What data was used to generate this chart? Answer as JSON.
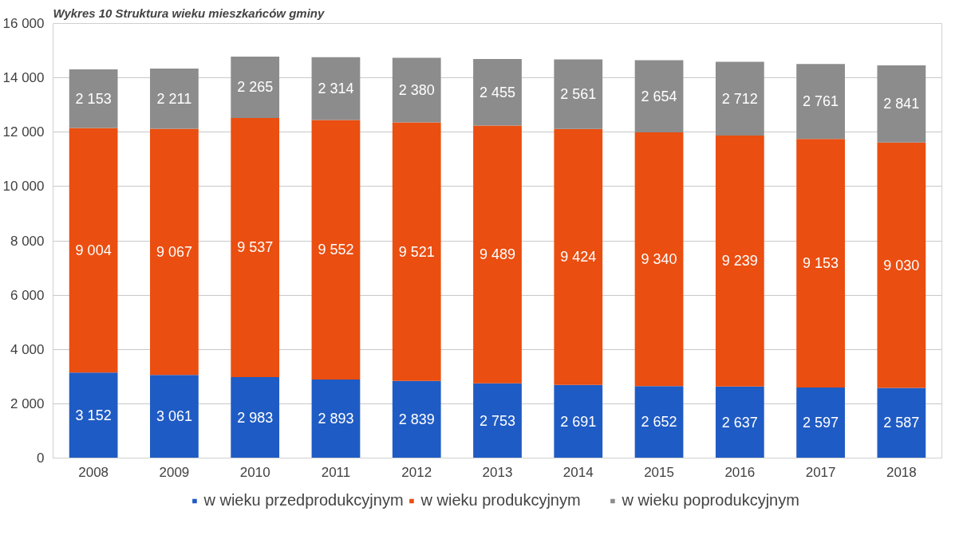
{
  "chart_data": {
    "type": "bar",
    "stacked": true,
    "title": "Wykres 10 Struktura wieku mieszkańców gminy",
    "categories": [
      "2008",
      "2009",
      "2010",
      "2011",
      "2012",
      "2013",
      "2014",
      "2015",
      "2016",
      "2017",
      "2018"
    ],
    "series": [
      {
        "name": "w wieku przedprodukcyjnym",
        "color": "#1f5bc4",
        "values": [
          3152,
          3061,
          2983,
          2893,
          2839,
          2753,
          2691,
          2652,
          2637,
          2597,
          2587
        ],
        "value_labels": [
          "3 152",
          "3 061",
          "2 983",
          "2 893",
          "2 839",
          "2 753",
          "2 691",
          "2 652",
          "2 637",
          "2 597",
          "2 587"
        ]
      },
      {
        "name": "w wieku produkcyjnym",
        "color": "#ea4e10",
        "values": [
          9004,
          9067,
          9537,
          9552,
          9521,
          9489,
          9424,
          9340,
          9239,
          9153,
          9030
        ],
        "value_labels": [
          "9 004",
          "9 067",
          "9 537",
          "9 552",
          "9 521",
          "9 489",
          "9 424",
          "9 340",
          "9 239",
          "9 153",
          "9 030"
        ]
      },
      {
        "name": "w wieku poprodukcyjnym",
        "color": "#8c8c8c",
        "values": [
          2153,
          2211,
          2265,
          2314,
          2380,
          2455,
          2561,
          2654,
          2712,
          2761,
          2841
        ],
        "value_labels": [
          "2 153",
          "2 211",
          "2 265",
          "2 314",
          "2 380",
          "2 455",
          "2 561",
          "2 654",
          "2 712",
          "2 761",
          "2 841"
        ]
      }
    ],
    "ylim": [
      0,
      16000
    ],
    "yticks": [
      0,
      {
        "value": 2000,
        "label": "2 000"
      },
      {
        "value": 4000,
        "label": "4 000"
      },
      {
        "value": 6000,
        "label": "6 000"
      },
      {
        "value": 8000,
        "label": "8 000"
      },
      {
        "value": 10000,
        "label": "10 000"
      },
      {
        "value": 12000,
        "label": "12 000"
      },
      {
        "value": 14000,
        "label": "14 000"
      },
      {
        "value": 16000,
        "label": "16 000"
      }
    ],
    "grid": "y",
    "legend": "bottom"
  }
}
